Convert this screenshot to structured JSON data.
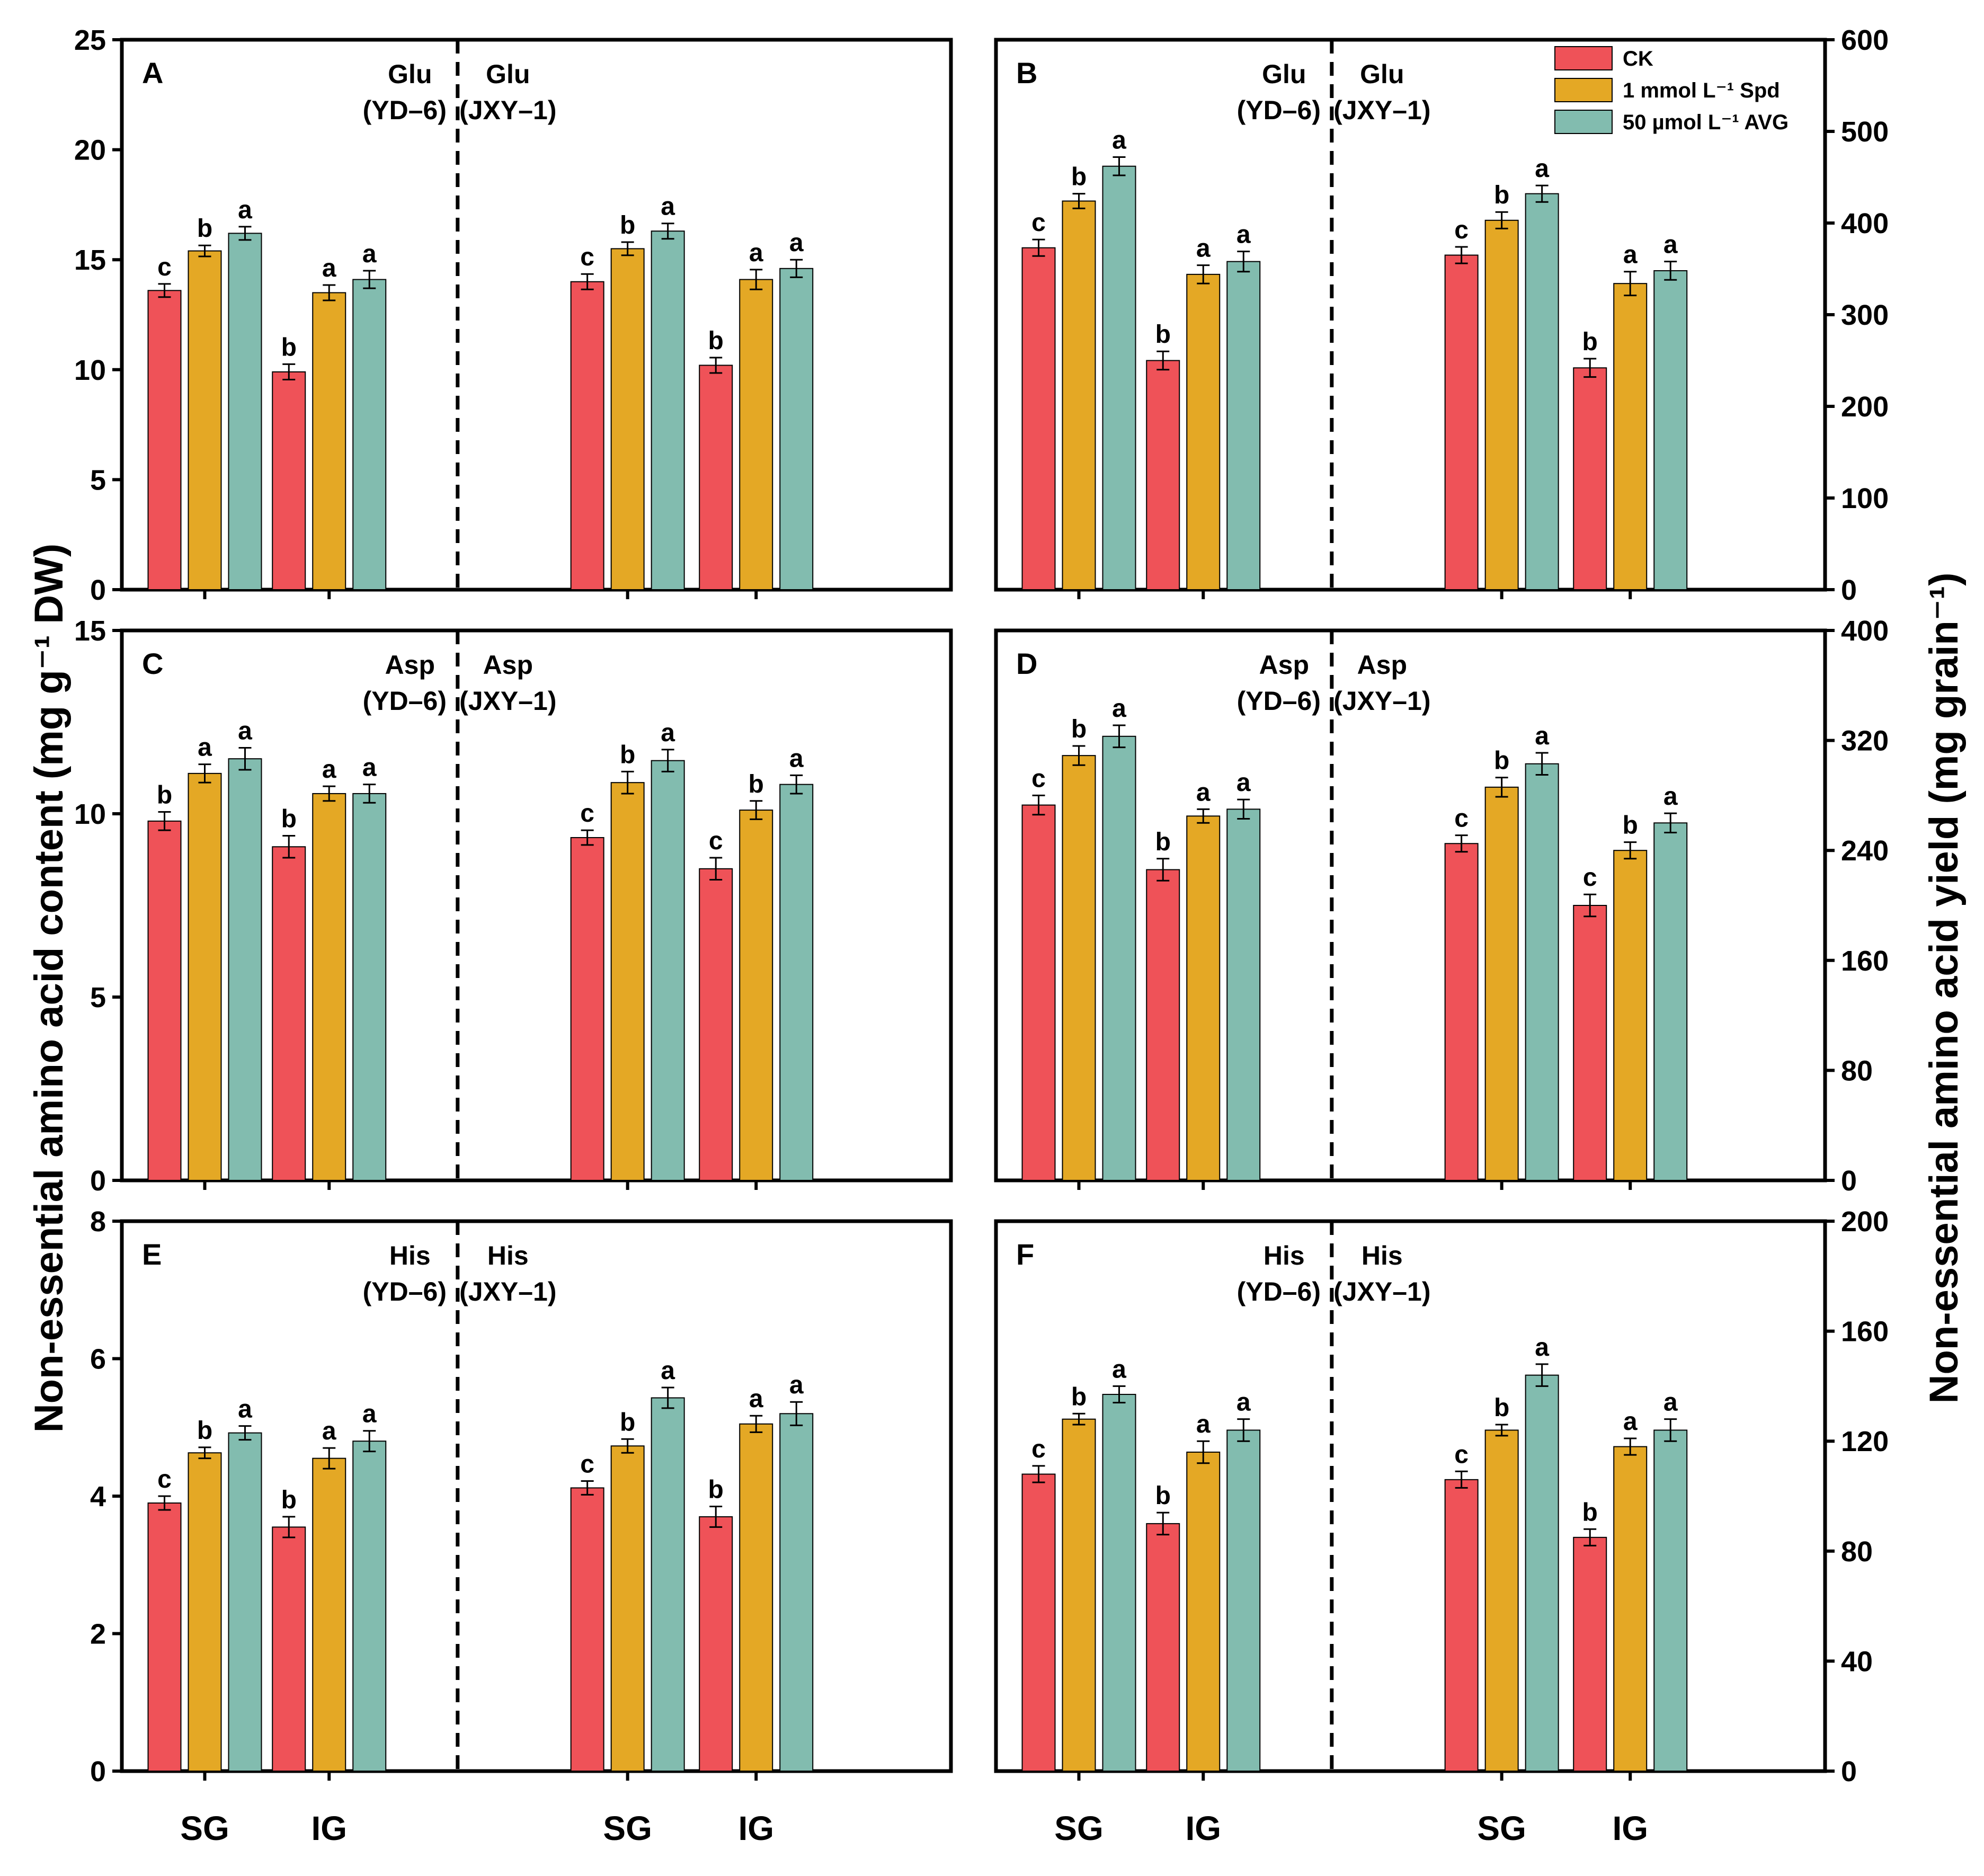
{
  "colors": {
    "ck": "#ef5258",
    "spd": "#e4a825",
    "avg": "#82bcaf",
    "axis": "#000000"
  },
  "legend": [
    "CK",
    "1 mmol L⁻¹ Spd",
    "50 µmol L⁻¹ AVG"
  ],
  "axis_titles": {
    "left": "Non-essential amino acid content (mg g⁻¹ DW)",
    "right": "Non-essential amino acid yield (mg grain⁻¹)"
  },
  "x_categories": [
    "SG",
    "IG"
  ],
  "chart_data": [
    {
      "id": "A",
      "type": "bar",
      "title": "A",
      "ylabel": "Non-essential amino acid content (mg g⁻¹ DW)",
      "ylim": [
        0,
        25
      ],
      "yticks": [
        0,
        5,
        10,
        15,
        20,
        25
      ],
      "categories": [
        "SG",
        "IG"
      ],
      "series_names": [
        "CK",
        "1 mmol L⁻¹ Spd",
        "50 µmol L⁻¹ AVG"
      ],
      "groups": [
        {
          "label_top": "Glu",
          "label_bottom": "(YD–6)",
          "values": [
            [
              13.6,
              15.4,
              16.2
            ],
            [
              9.9,
              13.5,
              14.1
            ]
          ],
          "errors": [
            [
              0.3,
              0.25,
              0.3
            ],
            [
              0.35,
              0.35,
              0.4
            ]
          ],
          "letters": [
            [
              "c",
              "b",
              "a"
            ],
            [
              "b",
              "a",
              "a"
            ]
          ]
        },
        {
          "label_top": "Glu",
          "label_bottom": "(JXY–1)",
          "values": [
            [
              14.0,
              15.5,
              16.3
            ],
            [
              10.2,
              14.1,
              14.6
            ]
          ],
          "errors": [
            [
              0.35,
              0.3,
              0.35
            ],
            [
              0.35,
              0.45,
              0.4
            ]
          ],
          "letters": [
            [
              "c",
              "b",
              "a"
            ],
            [
              "b",
              "a",
              "a"
            ]
          ]
        }
      ]
    },
    {
      "id": "B",
      "type": "bar",
      "title": "B",
      "ylabel": "Non-essential amino acid yield (mg grain⁻¹)",
      "ylim": [
        0,
        600
      ],
      "yticks": [
        0,
        100,
        200,
        300,
        400,
        500,
        600
      ],
      "categories": [
        "SG",
        "IG"
      ],
      "series_names": [
        "CK",
        "1 mmol L⁻¹ Spd",
        "50 µmol L⁻¹ AVG"
      ],
      "groups": [
        {
          "label_top": "Glu",
          "label_bottom": "(YD–6)",
          "values": [
            [
              373,
              424,
              462
            ],
            [
              250,
              344,
              358
            ]
          ],
          "errors": [
            [
              9,
              8,
              10
            ],
            [
              10,
              10,
              11
            ]
          ],
          "letters": [
            [
              "c",
              "b",
              "a"
            ],
            [
              "b",
              "a",
              "a"
            ]
          ]
        },
        {
          "label_top": "Glu",
          "label_bottom": "(JXY–1)",
          "values": [
            [
              365,
              403,
              432
            ],
            [
              242,
              334,
              348
            ]
          ],
          "errors": [
            [
              9,
              9,
              9
            ],
            [
              10,
              13,
              10
            ]
          ],
          "letters": [
            [
              "c",
              "b",
              "a"
            ],
            [
              "b",
              "a",
              "a"
            ]
          ]
        }
      ]
    },
    {
      "id": "C",
      "type": "bar",
      "title": "C",
      "ylabel": "Non-essential amino acid content (mg g⁻¹ DW)",
      "ylim": [
        0,
        15
      ],
      "yticks": [
        0,
        5,
        10,
        15
      ],
      "categories": [
        "SG",
        "IG"
      ],
      "series_names": [
        "CK",
        "1 mmol L⁻¹ Spd",
        "50 µmol L⁻¹ AVG"
      ],
      "groups": [
        {
          "label_top": "Asp",
          "label_bottom": "(YD–6)",
          "values": [
            [
              9.8,
              11.1,
              11.5
            ],
            [
              9.1,
              10.55,
              10.55
            ]
          ],
          "errors": [
            [
              0.25,
              0.25,
              0.3
            ],
            [
              0.3,
              0.2,
              0.25
            ]
          ],
          "letters": [
            [
              "b",
              "a",
              "a"
            ],
            [
              "b",
              "a",
              "a"
            ]
          ]
        },
        {
          "label_top": "Asp",
          "label_bottom": "(JXY–1)",
          "values": [
            [
              9.35,
              10.85,
              11.45
            ],
            [
              8.5,
              10.1,
              10.8
            ]
          ],
          "errors": [
            [
              0.2,
              0.3,
              0.3
            ],
            [
              0.3,
              0.25,
              0.25
            ]
          ],
          "letters": [
            [
              "c",
              "b",
              "a"
            ],
            [
              "c",
              "b",
              "a"
            ]
          ]
        }
      ]
    },
    {
      "id": "D",
      "type": "bar",
      "title": "D",
      "ylabel": "Non-essential amino acid yield (mg grain⁻¹)",
      "ylim": [
        0,
        400
      ],
      "yticks": [
        0,
        80,
        160,
        240,
        320,
        400
      ],
      "categories": [
        "SG",
        "IG"
      ],
      "series_names": [
        "CK",
        "1 mmol L⁻¹ Spd",
        "50 µmol L⁻¹ AVG"
      ],
      "groups": [
        {
          "label_top": "Asp",
          "label_bottom": "(YD–6)",
          "values": [
            [
              273,
              309,
              323
            ],
            [
              226,
              265,
              270
            ]
          ],
          "errors": [
            [
              7,
              7,
              8
            ],
            [
              8,
              5,
              7
            ]
          ],
          "letters": [
            [
              "c",
              "b",
              "a"
            ],
            [
              "b",
              "a",
              "a"
            ]
          ]
        },
        {
          "label_top": "Asp",
          "label_bottom": "(JXY–1)",
          "values": [
            [
              245,
              286,
              303
            ],
            [
              200,
              240,
              260
            ]
          ],
          "errors": [
            [
              6,
              7,
              8
            ],
            [
              8,
              6,
              7
            ]
          ],
          "letters": [
            [
              "c",
              "b",
              "a"
            ],
            [
              "c",
              "b",
              "a"
            ]
          ]
        }
      ]
    },
    {
      "id": "E",
      "type": "bar",
      "title": "E",
      "ylabel": "Non-essential amino acid content (mg g⁻¹ DW)",
      "ylim": [
        0,
        8
      ],
      "yticks": [
        0,
        2,
        4,
        6,
        8
      ],
      "categories": [
        "SG",
        "IG"
      ],
      "series_names": [
        "CK",
        "1 mmol L⁻¹ Spd",
        "50 µmol L⁻¹ AVG"
      ],
      "groups": [
        {
          "label_top": "His",
          "label_bottom": "(YD–6)",
          "values": [
            [
              3.9,
              4.63,
              4.92
            ],
            [
              3.55,
              4.55,
              4.8
            ]
          ],
          "errors": [
            [
              0.1,
              0.08,
              0.1
            ],
            [
              0.15,
              0.15,
              0.15
            ]
          ],
          "letters": [
            [
              "c",
              "b",
              "a"
            ],
            [
              "b",
              "a",
              "a"
            ]
          ]
        },
        {
          "label_top": "His",
          "label_bottom": "(JXY–1)",
          "values": [
            [
              4.12,
              4.73,
              5.43
            ],
            [
              3.7,
              5.05,
              5.2
            ]
          ],
          "errors": [
            [
              0.1,
              0.1,
              0.15
            ],
            [
              0.15,
              0.12,
              0.17
            ]
          ],
          "letters": [
            [
              "c",
              "b",
              "a"
            ],
            [
              "b",
              "a",
              "a"
            ]
          ]
        }
      ]
    },
    {
      "id": "F",
      "type": "bar",
      "title": "F",
      "ylabel": "Non-essential amino acid yield (mg grain⁻¹)",
      "ylim": [
        0,
        200
      ],
      "yticks": [
        0,
        40,
        80,
        120,
        160,
        200
      ],
      "categories": [
        "SG",
        "IG"
      ],
      "series_names": [
        "CK",
        "1 mmol L⁻¹ Spd",
        "50 µmol L⁻¹ AVG"
      ],
      "groups": [
        {
          "label_top": "His",
          "label_bottom": "(YD–6)",
          "values": [
            [
              108,
              128,
              137
            ],
            [
              90,
              116,
              124
            ]
          ],
          "errors": [
            [
              3,
              2,
              3
            ],
            [
              4,
              4,
              4
            ]
          ],
          "letters": [
            [
              "c",
              "b",
              "a"
            ],
            [
              "b",
              "a",
              "a"
            ]
          ]
        },
        {
          "label_top": "His",
          "label_bottom": "(JXY–1)",
          "values": [
            [
              106,
              124,
              144
            ],
            [
              85,
              118,
              124
            ]
          ],
          "errors": [
            [
              3,
              2,
              4
            ],
            [
              3,
              3,
              4
            ]
          ],
          "letters": [
            [
              "c",
              "b",
              "a"
            ],
            [
              "b",
              "a",
              "a"
            ]
          ]
        }
      ]
    }
  ]
}
